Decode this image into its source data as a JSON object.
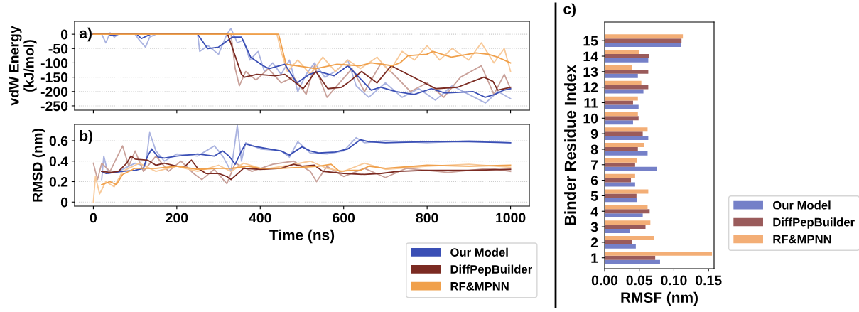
{
  "chart_data": [
    {
      "type": "line",
      "ylabel": "vdW Energy\n(kJ/mol)",
      "annotations": [
        "a)"
      ],
      "xlim": [
        -45,
        1045
      ],
      "xticks": [
        0,
        200,
        400,
        600,
        800,
        1000
      ],
      "ylim": [
        -265,
        45
      ],
      "yticks": [
        0,
        -50,
        -100,
        -150,
        -200,
        -250
      ],
      "tick_labels": "y",
      "grid": "y",
      "series": [
        {
          "color": "#aab3e0",
          "x": [
            0,
            20,
            30,
            40,
            50,
            60,
            100,
            110,
            125,
            135,
            150,
            250,
            255,
            275,
            300,
            320,
            330,
            345,
            360,
            375,
            395,
            410,
            430,
            450,
            470,
            490,
            510,
            530,
            555,
            580,
            610,
            630,
            660,
            700,
            740,
            780,
            820,
            860,
            900,
            940,
            970,
            1000
          ],
          "values": [
            0,
            0,
            -30,
            5,
            -10,
            0,
            0,
            -20,
            -45,
            -10,
            0,
            0,
            -60,
            -40,
            -70,
            0,
            20,
            -30,
            -20,
            -90,
            -60,
            -130,
            -100,
            -140,
            -90,
            -200,
            -140,
            -100,
            -150,
            -130,
            -90,
            -180,
            -220,
            -170,
            -220,
            -190,
            -230,
            -180,
            -210,
            -240,
            -200,
            -225
          ]
        },
        {
          "color": "#c9a19a",
          "x": [
            0,
            330,
            340,
            350,
            365,
            390,
            420,
            450,
            480,
            510,
            530,
            560,
            590,
            620,
            650,
            690,
            720,
            760,
            800,
            840,
            880,
            930,
            960,
            985,
            1000
          ],
          "values": [
            0,
            0,
            -120,
            -180,
            -130,
            -160,
            -120,
            -170,
            -150,
            -210,
            -110,
            -220,
            -170,
            -120,
            -200,
            -100,
            -140,
            -200,
            -170,
            -220,
            -150,
            -110,
            -210,
            -140,
            -190
          ]
        },
        {
          "color": "#f8c999",
          "x": [
            0,
            440,
            450,
            465,
            490,
            520,
            550,
            580,
            610,
            640,
            680,
            710,
            740,
            770,
            800,
            830,
            860,
            900,
            930,
            960,
            985,
            1000
          ],
          "values": [
            0,
            0,
            -60,
            -130,
            -90,
            -140,
            -80,
            -130,
            -90,
            -120,
            -80,
            -130,
            -60,
            -90,
            -40,
            -90,
            -50,
            -90,
            -30,
            -100,
            -50,
            -130
          ]
        },
        {
          "color": "#3a4fb5",
          "x": [
            0,
            37,
            45,
            59,
            104,
            115,
            137,
            250,
            274,
            300,
            333,
            355,
            377,
            407,
            421,
            459,
            488,
            518,
            540,
            577,
            610,
            643,
            666,
            688,
            725,
            769,
            810,
            843,
            910,
            939,
            962,
            984,
            1000
          ],
          "values": [
            0,
            0,
            -5,
            0,
            0,
            -15,
            0,
            0,
            -50,
            -45,
            -10,
            -10,
            -80,
            -110,
            -120,
            -105,
            -170,
            -140,
            -130,
            -145,
            -110,
            -160,
            -195,
            -185,
            -200,
            -210,
            -190,
            -205,
            -200,
            -220,
            -210,
            -195,
            -190
          ]
        },
        {
          "color": "#7b2b22",
          "x": [
            0,
            322,
            355,
            362,
            392,
            436,
            459,
            503,
            533,
            562,
            595,
            614,
            643,
            680,
            714,
            740,
            821,
            873,
            936,
            958,
            969,
            1000
          ],
          "values": [
            0,
            0,
            -140,
            -150,
            -140,
            -145,
            -140,
            -190,
            -130,
            -190,
            -185,
            -165,
            -130,
            -170,
            -110,
            -130,
            -190,
            -185,
            -150,
            -165,
            -195,
            -185
          ]
        },
        {
          "color": "#f0a04b",
          "x": [
            0,
            444,
            462,
            488,
            533,
            584,
            640,
            666,
            717,
            735,
            754,
            799,
            814,
            858,
            917,
            947,
            969,
            1000
          ],
          "values": [
            0,
            0,
            -105,
            -110,
            -120,
            -105,
            -110,
            -100,
            -110,
            -100,
            -75,
            -70,
            -60,
            -80,
            -65,
            -70,
            -80,
            -100
          ]
        }
      ]
    },
    {
      "type": "line",
      "xlabel": "Time (ns)",
      "ylabel": "RMSD (nm)",
      "annotations": [
        "b)"
      ],
      "xlim": [
        -45,
        1045
      ],
      "xticks": [
        0,
        200,
        400,
        600,
        800,
        1000
      ],
      "ylim": [
        -0.04,
        0.76
      ],
      "yticks": [
        0,
        0.2,
        0.4,
        0.6
      ],
      "grid": "y",
      "legend": "bottom right",
      "series": [
        {
          "color": "#aab3e0",
          "x": [
            20,
            25,
            35,
            60,
            100,
            125,
            135,
            150,
            170,
            200,
            250,
            270,
            290,
            310,
            330,
            345,
            355,
            365,
            400,
            450,
            470,
            490,
            520,
            560,
            600,
            630,
            650,
            700,
            800,
            900,
            1000
          ],
          "values": [
            0.22,
            0.45,
            0.28,
            0.3,
            0.38,
            0.35,
            0.68,
            0.5,
            0.4,
            0.47,
            0.45,
            0.5,
            0.55,
            0.45,
            0.3,
            0.75,
            0.4,
            0.58,
            0.52,
            0.5,
            0.44,
            0.59,
            0.48,
            0.47,
            0.5,
            0.63,
            0.58,
            0.6,
            0.58,
            0.6,
            0.58
          ]
        },
        {
          "color": "#c9a19a",
          "x": [
            0,
            10,
            20,
            40,
            70,
            85,
            100,
            120,
            150,
            180,
            210,
            240,
            260,
            290,
            320,
            340,
            380,
            430,
            480,
            520,
            535,
            560,
            600,
            650,
            700,
            750,
            850,
            950,
            1000
          ],
          "values": [
            0.38,
            0.22,
            0.38,
            0.3,
            0.55,
            0.35,
            0.5,
            0.3,
            0.45,
            0.3,
            0.4,
            0.28,
            0.22,
            0.32,
            0.18,
            0.38,
            0.3,
            0.37,
            0.4,
            0.3,
            0.2,
            0.35,
            0.25,
            0.33,
            0.24,
            0.33,
            0.29,
            0.33,
            0.3
          ]
        },
        {
          "color": "#f8c999",
          "x": [
            0,
            5,
            15,
            30,
            50,
            70,
            110,
            150,
            200,
            250,
            300,
            330,
            360,
            410,
            470,
            520,
            560,
            600,
            650,
            700,
            800,
            900,
            1000
          ],
          "values": [
            0,
            0.25,
            0.08,
            0.2,
            0.15,
            0.3,
            0.38,
            0.3,
            0.35,
            0.3,
            0.36,
            0.3,
            0.38,
            0.32,
            0.36,
            0.4,
            0.33,
            0.3,
            0.38,
            0.32,
            0.35,
            0.37,
            0.34
          ]
        },
        {
          "name": "Our Model",
          "color": "#3a4fb5",
          "x": [
            20,
            30,
            50,
            70,
            100,
            120,
            130,
            140,
            155,
            170,
            200,
            250,
            290,
            310,
            325,
            340,
            355,
            365,
            380,
            420,
            450,
            470,
            500,
            520,
            540,
            580,
            610,
            640,
            660,
            700,
            800,
            900,
            1000
          ],
          "values": [
            0.3,
            0.28,
            0.29,
            0.3,
            0.31,
            0.33,
            0.45,
            0.52,
            0.44,
            0.43,
            0.45,
            0.47,
            0.45,
            0.5,
            0.45,
            0.37,
            0.5,
            0.57,
            0.55,
            0.52,
            0.5,
            0.46,
            0.54,
            0.5,
            0.48,
            0.49,
            0.52,
            0.61,
            0.59,
            0.58,
            0.59,
            0.59,
            0.58
          ]
        },
        {
          "name": "DiffPepBuilder",
          "color": "#7b2b22",
          "x": [
            20,
            40,
            60,
            80,
            90,
            100,
            130,
            150,
            170,
            200,
            220,
            235,
            250,
            270,
            300,
            320,
            330,
            360,
            400,
            450,
            480,
            500,
            530,
            550,
            600,
            650,
            690,
            730,
            800,
            900,
            1000
          ],
          "values": [
            0.3,
            0.29,
            0.3,
            0.38,
            0.45,
            0.42,
            0.41,
            0.36,
            0.38,
            0.35,
            0.35,
            0.41,
            0.33,
            0.28,
            0.28,
            0.25,
            0.22,
            0.33,
            0.32,
            0.33,
            0.37,
            0.35,
            0.36,
            0.3,
            0.28,
            0.27,
            0.28,
            0.3,
            0.31,
            0.31,
            0.32
          ]
        },
        {
          "name": "RF&MPNN",
          "color": "#f0a04b",
          "x": [
            20,
            40,
            55,
            70,
            100,
            150,
            200,
            250,
            300,
            330,
            370,
            400,
            450,
            500,
            540,
            570,
            590,
            620,
            640,
            660,
            700,
            800,
            900,
            1000
          ],
          "values": [
            0.17,
            0.2,
            0.17,
            0.27,
            0.33,
            0.33,
            0.35,
            0.32,
            0.33,
            0.33,
            0.35,
            0.33,
            0.33,
            0.34,
            0.35,
            0.37,
            0.3,
            0.31,
            0.31,
            0.35,
            0.33,
            0.36,
            0.35,
            0.36
          ]
        }
      ]
    },
    {
      "type": "bar",
      "orientation": "horizontal",
      "xlabel": "RMSF (nm)",
      "ylabel": "Binder Residue Index",
      "annotations": [
        "c)"
      ],
      "categories": [
        "15",
        "14",
        "13",
        "12",
        "11",
        "10",
        "9",
        "8",
        "7",
        "6",
        "5",
        "4",
        "3",
        "2",
        "1"
      ],
      "xlim": [
        0,
        0.158
      ],
      "xticks": [
        {
          "value": 0,
          "label": "0.00"
        },
        {
          "value": 0.05,
          "label": "0.05"
        },
        {
          "value": 0.1,
          "label": "0.10"
        },
        {
          "value": 0.15,
          "label": "0.15"
        }
      ],
      "legend": "right",
      "series": [
        {
          "name": "Our Model",
          "color": "#7580c8",
          "values": [
            0.11,
            0.063,
            0.048,
            0.056,
            0.049,
            0.041,
            0.063,
            0.062,
            0.075,
            0.044,
            0.047,
            0.055,
            0.036,
            0.045,
            0.08
          ]
        },
        {
          "name": "DiffPepBuilder",
          "color": "#9a5b5b",
          "values": [
            0.111,
            0.064,
            0.063,
            0.063,
            0.041,
            0.049,
            0.055,
            0.048,
            0.044,
            0.038,
            0.046,
            0.065,
            0.059,
            0.04,
            0.073
          ]
        },
        {
          "name": "RF&MPNN",
          "color": "#f3ae76",
          "values": [
            0.113,
            0.05,
            0.04,
            0.053,
            0.048,
            0.048,
            0.062,
            0.057,
            0.047,
            0.044,
            0.063,
            0.062,
            0.066,
            0.071,
            0.155
          ]
        }
      ]
    }
  ]
}
